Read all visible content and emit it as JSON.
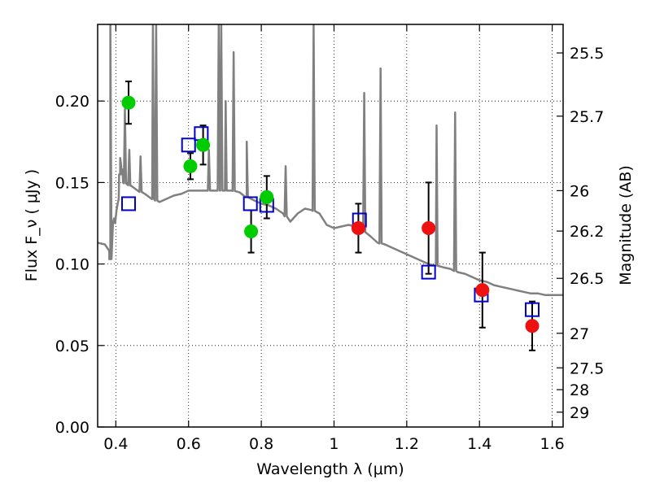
{
  "chart_data": {
    "type": "scatter",
    "title": "",
    "xlabel": "Wavelength  λ (μm)",
    "ylabel_left": "Flux  F_ν  ( μJy )",
    "ylabel_right": "Magnitude (AB)",
    "xlim": [
      0.35,
      1.63
    ],
    "ylim": [
      0.0,
      0.247
    ],
    "grid": true,
    "x_ticks": [
      0.4,
      0.6,
      0.8,
      1.0,
      1.2,
      1.4,
      1.6
    ],
    "x_tick_labels": [
      "0.4",
      "0.6",
      "0.8",
      "1",
      "1.2",
      "1.4",
      "1.6"
    ],
    "y_ticks": [
      0.0,
      0.05,
      0.1,
      0.15,
      0.2
    ],
    "y_tick_labels": [
      "0.00",
      "0.05",
      "0.10",
      "0.15",
      "0.20"
    ],
    "right_ticks": [
      {
        "label": "25.5",
        "flux": 0.2295
      },
      {
        "label": "25.7",
        "flux": 0.1907
      },
      {
        "label": "26",
        "flux": 0.145
      },
      {
        "label": "26.2",
        "flux": 0.1202
      },
      {
        "label": "26.5",
        "flux": 0.0912
      },
      {
        "label": "27",
        "flux": 0.0575
      },
      {
        "label": "27.5",
        "flux": 0.0363
      },
      {
        "label": "28",
        "flux": 0.0229
      },
      {
        "label": "29",
        "flux": 0.0091
      }
    ],
    "series": [
      {
        "kind": "line",
        "color": "#808080",
        "points": [
          [
            0.35,
            0.113
          ],
          [
            0.37,
            0.112
          ],
          [
            0.382,
            0.108
          ],
          [
            0.385,
            0.103
          ],
          [
            0.388,
            0.11
          ],
          [
            0.392,
            0.125
          ],
          [
            0.395,
            0.128
          ],
          [
            0.398,
            0.125
          ],
          [
            0.402,
            0.133
          ],
          [
            0.405,
            0.137
          ],
          [
            0.408,
            0.14
          ],
          [
            0.412,
            0.155
          ],
          [
            0.415,
            0.16
          ],
          [
            0.418,
            0.158
          ],
          [
            0.42,
            0.15
          ],
          [
            0.44,
            0.148
          ],
          [
            0.46,
            0.145
          ],
          [
            0.48,
            0.143
          ],
          [
            0.5,
            0.14
          ],
          [
            0.52,
            0.138
          ],
          [
            0.54,
            0.14
          ],
          [
            0.56,
            0.142
          ],
          [
            0.58,
            0.143
          ],
          [
            0.6,
            0.145
          ],
          [
            0.62,
            0.145
          ],
          [
            0.64,
            0.145
          ],
          [
            0.66,
            0.145
          ],
          [
            0.68,
            0.145
          ],
          [
            0.7,
            0.145
          ],
          [
            0.72,
            0.145
          ],
          [
            0.74,
            0.144
          ],
          [
            0.76,
            0.141
          ],
          [
            0.78,
            0.139
          ],
          [
            0.8,
            0.137
          ],
          [
            0.82,
            0.136
          ],
          [
            0.84,
            0.134
          ],
          [
            0.86,
            0.131
          ],
          [
            0.88,
            0.126
          ],
          [
            0.9,
            0.131
          ],
          [
            0.92,
            0.134
          ],
          [
            0.94,
            0.133
          ],
          [
            0.96,
            0.131
          ],
          [
            0.98,
            0.124
          ],
          [
            1.0,
            0.122
          ],
          [
            1.02,
            0.123
          ],
          [
            1.04,
            0.124
          ],
          [
            1.06,
            0.123
          ],
          [
            1.08,
            0.12
          ],
          [
            1.1,
            0.117
          ],
          [
            1.12,
            0.113
          ],
          [
            1.14,
            0.112
          ],
          [
            1.16,
            0.11
          ],
          [
            1.18,
            0.108
          ],
          [
            1.2,
            0.106
          ],
          [
            1.22,
            0.104
          ],
          [
            1.24,
            0.102
          ],
          [
            1.26,
            0.1
          ],
          [
            1.28,
            0.099
          ],
          [
            1.3,
            0.098
          ],
          [
            1.32,
            0.097
          ],
          [
            1.34,
            0.095
          ],
          [
            1.36,
            0.094
          ],
          [
            1.38,
            0.092
          ],
          [
            1.4,
            0.09
          ],
          [
            1.42,
            0.089
          ],
          [
            1.44,
            0.087
          ],
          [
            1.46,
            0.086
          ],
          [
            1.48,
            0.085
          ],
          [
            1.5,
            0.084
          ],
          [
            1.52,
            0.083
          ],
          [
            1.54,
            0.082
          ],
          [
            1.56,
            0.082
          ],
          [
            1.58,
            0.081
          ],
          [
            1.6,
            0.081
          ],
          [
            1.63,
            0.081
          ]
        ],
        "spikes": [
          {
            "x": 0.385,
            "peak": 0.247
          },
          {
            "x": 0.412,
            "peak": 0.165
          },
          {
            "x": 0.425,
            "peak": 0.195
          },
          {
            "x": 0.437,
            "peak": 0.17
          },
          {
            "x": 0.468,
            "peak": 0.166
          },
          {
            "x": 0.502,
            "peak": 0.247
          },
          {
            "x": 0.511,
            "peak": 0.247
          },
          {
            "x": 0.656,
            "peak": 0.17
          },
          {
            "x": 0.683,
            "peak": 0.247
          },
          {
            "x": 0.69,
            "peak": 0.247
          },
          {
            "x": 0.702,
            "peak": 0.2
          },
          {
            "x": 0.724,
            "peak": 0.23
          },
          {
            "x": 0.76,
            "peak": 0.175
          },
          {
            "x": 0.867,
            "peak": 0.16
          },
          {
            "x": 0.944,
            "peak": 0.247
          },
          {
            "x": 1.083,
            "peak": 0.205
          },
          {
            "x": 1.128,
            "peak": 0.22
          },
          {
            "x": 1.282,
            "peak": 0.185
          },
          {
            "x": 1.333,
            "peak": 0.193
          }
        ]
      },
      {
        "kind": "open-square",
        "color": "#0000cc",
        "points": [
          [
            0.435,
            0.137
          ],
          [
            0.6,
            0.173
          ],
          [
            0.635,
            0.18
          ],
          [
            0.77,
            0.137
          ],
          [
            0.815,
            0.136
          ],
          [
            1.07,
            0.127
          ],
          [
            1.26,
            0.095
          ],
          [
            1.405,
            0.081
          ],
          [
            1.545,
            0.072
          ]
        ]
      },
      {
        "kind": "filled-circle",
        "color": "#00cc00",
        "points": [
          {
            "x": 0.435,
            "y": 0.199,
            "err": 0.013
          },
          {
            "x": 0.605,
            "y": 0.16,
            "err": 0.008
          },
          {
            "x": 0.64,
            "y": 0.173,
            "err": 0.012
          },
          {
            "x": 0.772,
            "y": 0.12,
            "err": 0.013
          },
          {
            "x": 0.815,
            "y": 0.141,
            "err": 0.013
          }
        ]
      },
      {
        "kind": "filled-circle",
        "color": "#ee1111",
        "points": [
          {
            "x": 1.067,
            "y": 0.122,
            "err": 0.015
          },
          {
            "x": 1.26,
            "y": 0.122,
            "err": 0.028
          },
          {
            "x": 1.408,
            "y": 0.084,
            "err": 0.023
          },
          {
            "x": 1.545,
            "y": 0.062,
            "err": 0.015
          }
        ]
      }
    ]
  }
}
